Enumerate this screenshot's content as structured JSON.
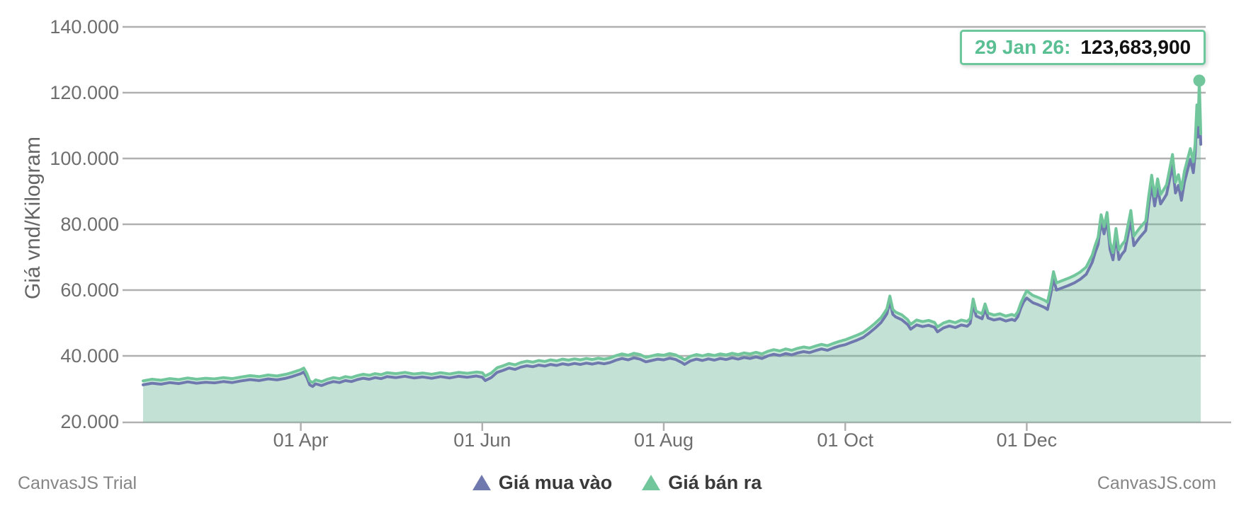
{
  "tooltip": {
    "date": "29 Jan 26:",
    "value": "123,683,900"
  },
  "footer": {
    "trial_label": "CanvasJS Trial",
    "site_label": "CanvasJS.com"
  },
  "colors": {
    "buy_line": "#7079ae",
    "sell_line": "#72c69c",
    "sell_fill": "rgba(114,198,156,0.36)",
    "buy_fill": "rgba(96,118,141,0.07)",
    "grid": "#b0b0b0",
    "axis_label": "#6e6e6e",
    "tooltip_border": "#6cc79c",
    "tooltip_date": "#5bbf94",
    "tooltip_value": "#111111",
    "marker": "#72c69c"
  },
  "chart_data": {
    "type": "area",
    "title": "",
    "ylabel": "Giá vnd/Kilogram",
    "xlabel": "",
    "grid": true,
    "legend_position": "bottom-center",
    "y_axis": {
      "unit_thousands": true,
      "range": [
        20,
        140
      ],
      "ticks": [
        {
          "label": "140.000",
          "value": 140
        },
        {
          "label": "120.000",
          "value": 120
        },
        {
          "label": "100.000",
          "value": 100
        },
        {
          "label": "80.000",
          "value": 80
        },
        {
          "label": "60.000",
          "value": 60
        },
        {
          "label": "40.000",
          "value": 40
        },
        {
          "label": "20.000",
          "value": 20
        }
      ]
    },
    "x_axis": {
      "range_days": [
        0,
        356
      ],
      "ticks": [
        {
          "label": "01 Apr",
          "day": 53
        },
        {
          "label": "01 Jun",
          "day": 114
        },
        {
          "label": "01 Aug",
          "day": 175
        },
        {
          "label": "01 Oct",
          "day": 236
        },
        {
          "label": "01 Dec",
          "day": 297
        }
      ]
    },
    "days": [
      0,
      3,
      6,
      9,
      12,
      15,
      18,
      21,
      24,
      27,
      30,
      33,
      36,
      39,
      42,
      45,
      48,
      50,
      52,
      53,
      54,
      55,
      56,
      57,
      58,
      60,
      62,
      64,
      66,
      68,
      70,
      72,
      74,
      76,
      78,
      80,
      82,
      85,
      88,
      91,
      94,
      97,
      100,
      103,
      106,
      109,
      112,
      114,
      115,
      117,
      119,
      121,
      123,
      125,
      127,
      129,
      131,
      133,
      135,
      137,
      139,
      141,
      143,
      145,
      147,
      149,
      151,
      153,
      155,
      157,
      159,
      161,
      163,
      165,
      167,
      169,
      171,
      173,
      175,
      177,
      179,
      181,
      182,
      184,
      186,
      188,
      190,
      192,
      194,
      196,
      198,
      200,
      202,
      204,
      206,
      208,
      210,
      212,
      214,
      216,
      218,
      220,
      222,
      224,
      226,
      228,
      230,
      232,
      234,
      236,
      238,
      240,
      242,
      244,
      246,
      248,
      249,
      250,
      251,
      252,
      253,
      255,
      257,
      258,
      260,
      262,
      264,
      266,
      267,
      269,
      271,
      273,
      275,
      277,
      278,
      279,
      280,
      282,
      283,
      284,
      286,
      288,
      290,
      292,
      293,
      294,
      295,
      296,
      297,
      299,
      301,
      303,
      304,
      305,
      306,
      307,
      309,
      311,
      313,
      315,
      317,
      319,
      320,
      321,
      322,
      323,
      324,
      325,
      326,
      327,
      328,
      329,
      330,
      332,
      333,
      334,
      335,
      337,
      338,
      339,
      340,
      341,
      342,
      343,
      344,
      346,
      347,
      348,
      349,
      350,
      351,
      352,
      353,
      353.6,
      354.2,
      354.6,
      355,
      355.5
    ],
    "series": [
      {
        "name": "Giá mua vào",
        "color": "#7079ae",
        "values": [
          31.2,
          31.7,
          31.4,
          31.9,
          31.6,
          32.1,
          31.7,
          32.0,
          31.8,
          32.2,
          31.9,
          32.4,
          32.8,
          32.5,
          33.0,
          32.7,
          33.2,
          33.7,
          34.3,
          34.6,
          35.1,
          33.5,
          31.2,
          30.7,
          31.5,
          31.0,
          31.7,
          32.2,
          31.9,
          32.5,
          32.2,
          32.8,
          33.2,
          32.9,
          33.4,
          33.1,
          33.7,
          33.4,
          33.8,
          33.3,
          33.6,
          33.2,
          33.7,
          33.3,
          33.8,
          33.5,
          33.9,
          33.5,
          32.5,
          33.4,
          35.0,
          35.6,
          36.3,
          35.9,
          36.6,
          37.0,
          36.7,
          37.2,
          36.9,
          37.4,
          37.1,
          37.6,
          37.3,
          37.7,
          37.4,
          37.8,
          37.5,
          37.9,
          37.6,
          38.0,
          38.7,
          39.2,
          38.8,
          39.4,
          39.0,
          38.2,
          38.6,
          39.0,
          38.8,
          39.3,
          38.9,
          38.0,
          37.4,
          38.5,
          39.0,
          38.6,
          39.1,
          38.7,
          39.2,
          38.9,
          39.4,
          39.0,
          39.5,
          39.2,
          39.7,
          39.2,
          40.0,
          40.5,
          40.1,
          40.7,
          40.3,
          40.9,
          41.3,
          41.0,
          41.6,
          42.1,
          41.7,
          42.4,
          43.0,
          43.4,
          44.1,
          44.8,
          45.6,
          46.9,
          48.4,
          50.1,
          51.4,
          52.8,
          56.6,
          52.6,
          51.8,
          51.0,
          49.5,
          48.1,
          49.4,
          48.9,
          49.3,
          48.7,
          47.3,
          48.5,
          49.1,
          48.6,
          49.4,
          49.0,
          49.9,
          55.7,
          52.1,
          51.3,
          54.3,
          51.5,
          50.9,
          51.3,
          50.6,
          51.1,
          50.7,
          51.9,
          54.5,
          56.5,
          57.6,
          56.2,
          55.5,
          54.7,
          54.1,
          58.4,
          63.4,
          60.0,
          60.7,
          61.4,
          62.2,
          63.3,
          64.8,
          68.4,
          71.4,
          73.9,
          80.7,
          77.1,
          81.4,
          72.4,
          69.2,
          76.5,
          69.3,
          70.9,
          72.0,
          81.3,
          73.5,
          74.8,
          76.0,
          78.1,
          85.7,
          92.0,
          85.6,
          90.9,
          86.2,
          87.6,
          89.1,
          97.9,
          89.5,
          91.8,
          87.3,
          92.8,
          96.3,
          99.7,
          95.7,
          101.2,
          112.9,
          106.5,
          118.9,
          104.3
        ]
      },
      {
        "name": "Giá bán ra",
        "color": "#72c69c",
        "values": [
          32.4,
          32.9,
          32.6,
          33.1,
          32.8,
          33.3,
          32.9,
          33.2,
          33.0,
          33.4,
          33.1,
          33.6,
          34.0,
          33.7,
          34.2,
          33.9,
          34.4,
          34.9,
          35.5,
          35.8,
          36.3,
          34.7,
          32.4,
          31.9,
          32.7,
          32.2,
          32.9,
          33.4,
          33.1,
          33.7,
          33.4,
          34.0,
          34.4,
          34.1,
          34.6,
          34.3,
          34.9,
          34.6,
          35.0,
          34.5,
          34.8,
          34.4,
          34.9,
          34.5,
          35.0,
          34.7,
          35.1,
          34.9,
          33.9,
          34.8,
          36.4,
          37.0,
          37.7,
          37.3,
          38.0,
          38.4,
          38.1,
          38.6,
          38.3,
          38.8,
          38.5,
          39.0,
          38.7,
          39.1,
          38.8,
          39.2,
          38.9,
          39.3,
          39.0,
          39.4,
          40.1,
          40.6,
          40.2,
          40.8,
          40.4,
          39.6,
          40.0,
          40.4,
          40.2,
          40.7,
          40.3,
          39.4,
          38.8,
          39.9,
          40.4,
          40.0,
          40.5,
          40.1,
          40.6,
          40.3,
          40.8,
          40.4,
          40.9,
          40.6,
          41.1,
          40.6,
          41.4,
          41.9,
          41.5,
          42.1,
          41.7,
          42.3,
          42.7,
          42.4,
          43.0,
          43.5,
          43.1,
          43.8,
          44.4,
          44.9,
          45.6,
          46.3,
          47.1,
          48.4,
          49.9,
          51.6,
          52.9,
          54.3,
          58.2,
          54.1,
          53.3,
          52.5,
          51.0,
          49.6,
          50.9,
          50.4,
          50.8,
          50.2,
          48.8,
          50.0,
          50.6,
          50.1,
          50.9,
          50.5,
          51.4,
          57.3,
          53.6,
          52.8,
          55.8,
          53.0,
          52.4,
          52.8,
          52.1,
          52.6,
          52.2,
          53.4,
          56.0,
          58.0,
          59.8,
          58.4,
          57.7,
          56.9,
          56.3,
          60.6,
          65.6,
          62.2,
          62.9,
          63.6,
          64.4,
          65.5,
          67.0,
          70.6,
          73.6,
          76.1,
          82.9,
          79.3,
          83.6,
          74.6,
          71.4,
          78.7,
          72.2,
          73.8,
          74.9,
          84.2,
          76.4,
          77.7,
          78.9,
          81.0,
          88.6,
          94.9,
          88.5,
          93.8,
          89.1,
          90.5,
          92.0,
          101.2,
          92.8,
          95.1,
          90.6,
          96.1,
          99.6,
          103.0,
          99.0,
          104.5,
          116.3,
          110.2,
          123.683,
          107.5
        ]
      }
    ],
    "end_marker": {
      "series": "Giá bán ra",
      "day": 355,
      "value": 123.683,
      "display": "123,683,900",
      "date": "29 Jan 26"
    }
  }
}
